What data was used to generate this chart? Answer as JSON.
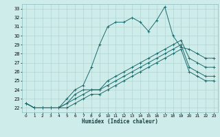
{
  "xlabel": "Humidex (Indice chaleur)",
  "bg_color": "#ceecea",
  "grid_color": "#b0d4d2",
  "line_color": "#1a6b6b",
  "xlim": [
    -0.5,
    23.5
  ],
  "ylim": [
    21.5,
    33.5
  ],
  "xticks": [
    0,
    1,
    2,
    3,
    4,
    5,
    6,
    7,
    8,
    9,
    10,
    11,
    12,
    13,
    14,
    15,
    16,
    17,
    18,
    19,
    20,
    21,
    22,
    23
  ],
  "yticks": [
    22,
    23,
    24,
    25,
    26,
    27,
    28,
    29,
    30,
    31,
    32,
    33
  ],
  "series": [
    [
      22.5,
      22.0,
      22.0,
      22.0,
      22.0,
      23.0,
      24.0,
      24.5,
      26.5,
      29.0,
      31.0,
      31.5,
      31.5,
      32.0,
      31.5,
      30.5,
      31.7,
      33.2,
      30.0,
      28.7,
      28.5,
      28.0,
      27.5,
      27.5
    ],
    [
      22.5,
      22.0,
      22.0,
      22.0,
      22.0,
      22.5,
      23.5,
      24.0,
      24.0,
      24.0,
      25.0,
      25.5,
      26.0,
      26.5,
      27.0,
      27.5,
      28.0,
      28.5,
      29.0,
      29.5,
      27.5,
      27.0,
      26.5,
      26.5
    ],
    [
      22.5,
      22.0,
      22.0,
      22.0,
      22.0,
      22.5,
      23.0,
      23.5,
      24.0,
      24.0,
      24.5,
      25.0,
      25.5,
      26.0,
      26.5,
      27.0,
      27.5,
      28.0,
      28.5,
      29.0,
      26.5,
      26.0,
      25.5,
      25.5
    ],
    [
      22.5,
      22.0,
      22.0,
      22.0,
      22.0,
      22.0,
      22.5,
      23.0,
      23.5,
      23.5,
      24.0,
      24.5,
      25.0,
      25.5,
      26.0,
      26.5,
      27.0,
      27.5,
      28.0,
      28.5,
      26.0,
      25.5,
      25.0,
      25.0
    ]
  ]
}
